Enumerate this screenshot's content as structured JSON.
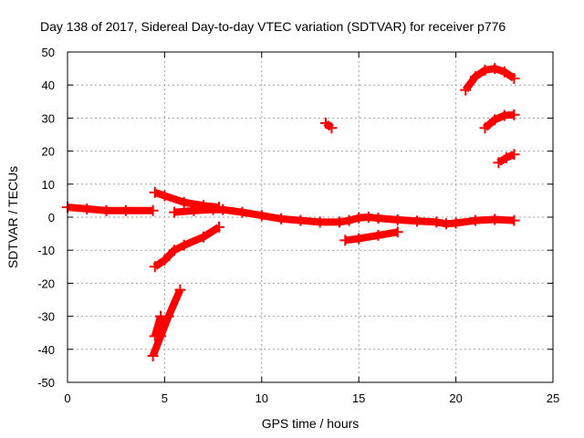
{
  "chart_data": {
    "type": "scatter",
    "title": "Day 138 of 2017, Sidereal Day-to-day VTEC variation (SDTVAR) for receiver p776",
    "xlabel": "GPS time / hours",
    "ylabel": "SDTVAR / TECUs",
    "xlim": [
      0,
      25
    ],
    "ylim": [
      -50,
      50
    ],
    "xticks": [
      0,
      5,
      10,
      15,
      20,
      25
    ],
    "yticks": [
      -50,
      -40,
      -30,
      -20,
      -10,
      0,
      10,
      20,
      30,
      40,
      50
    ],
    "grid": true,
    "color": "#ff0000",
    "series": [
      {
        "points": [
          [
            0,
            3
          ],
          [
            1,
            2.5
          ],
          [
            2,
            2
          ],
          [
            3,
            2
          ],
          [
            4.4,
            2
          ]
        ]
      },
      {
        "points": [
          [
            4.5,
            7.5
          ],
          [
            5,
            6.5
          ],
          [
            6,
            4.5
          ],
          [
            7,
            3.5
          ],
          [
            7.8,
            3
          ]
        ]
      },
      {
        "points": [
          [
            5.5,
            1.5
          ],
          [
            6.5,
            2
          ],
          [
            7.5,
            2.3
          ],
          [
            8,
            2.3
          ],
          [
            9,
            1.5
          ],
          [
            10,
            0.5
          ],
          [
            11,
            -0.5
          ],
          [
            12,
            -1
          ],
          [
            13,
            -1.5
          ],
          [
            14,
            -1.5
          ],
          [
            14.5,
            -1
          ],
          [
            15,
            -0.2
          ],
          [
            15.5,
            0
          ],
          [
            16,
            -0.3
          ],
          [
            17,
            -0.8
          ],
          [
            18,
            -1.2
          ],
          [
            19,
            -1.5
          ],
          [
            19.5,
            -2
          ],
          [
            20,
            -1.8
          ],
          [
            21,
            -1
          ],
          [
            22,
            -0.7
          ],
          [
            23,
            -1
          ]
        ]
      },
      {
        "points": [
          [
            4.5,
            -15
          ],
          [
            5,
            -13
          ],
          [
            5.5,
            -10
          ],
          [
            6,
            -8.5
          ],
          [
            7,
            -6
          ],
          [
            7.8,
            -3
          ]
        ]
      },
      {
        "points": [
          [
            4.4,
            -42
          ],
          [
            4.8,
            -36
          ],
          [
            5.2,
            -30
          ],
          [
            5.8,
            -22
          ]
        ]
      },
      {
        "points": [
          [
            4.5,
            -36
          ],
          [
            4.8,
            -30
          ]
        ]
      },
      {
        "points": [
          [
            13.3,
            28.5
          ],
          [
            13.6,
            27
          ]
        ]
      },
      {
        "points": [
          [
            14.3,
            -7
          ],
          [
            15,
            -6.5
          ],
          [
            16,
            -5.5
          ],
          [
            17,
            -4.5
          ]
        ]
      },
      {
        "points": [
          [
            20.5,
            38.5
          ],
          [
            21,
            42.5
          ],
          [
            21.5,
            44.5
          ],
          [
            22,
            45
          ],
          [
            22.5,
            44
          ],
          [
            23,
            42
          ]
        ]
      },
      {
        "points": [
          [
            21.5,
            27
          ],
          [
            22,
            29.5
          ],
          [
            22.5,
            30.8
          ],
          [
            23,
            31
          ]
        ]
      },
      {
        "points": [
          [
            22.2,
            16.5
          ],
          [
            22.6,
            18
          ],
          [
            23,
            19
          ]
        ]
      }
    ]
  }
}
